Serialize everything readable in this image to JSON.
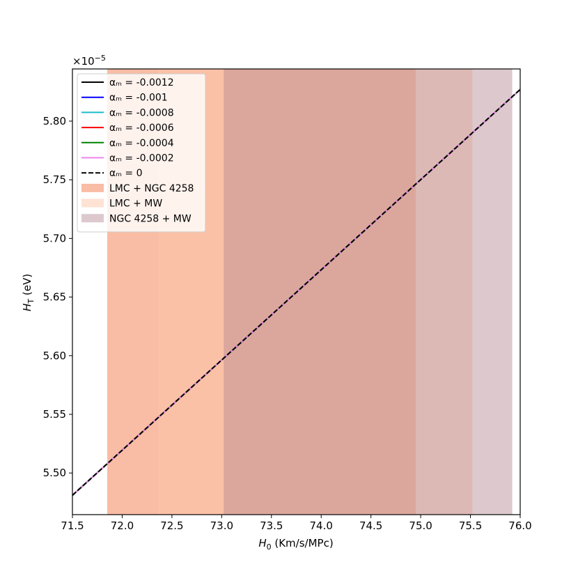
{
  "chart_data": {
    "type": "line",
    "xlabel_symbol": "H",
    "xlabel_sub": "0",
    "xlabel_unit": " (Km/s/MPc)",
    "ylabel_symbol": "H",
    "ylabel_sub": "T",
    "ylabel_unit": " (eV)",
    "offset_text_base": "×10",
    "offset_text_exp": "−5",
    "xlim": [
      71.5,
      76.0
    ],
    "ylim": [
      5.4645,
      5.8445
    ],
    "xticks": [
      71.5,
      72.0,
      72.5,
      73.0,
      73.5,
      74.0,
      74.5,
      75.0,
      75.5,
      76.0
    ],
    "xtick_labels": [
      "71.5",
      "72.0",
      "72.5",
      "73.0",
      "73.5",
      "74.0",
      "74.5",
      "75.0",
      "75.5",
      "76.0"
    ],
    "yticks": [
      5.5,
      5.55,
      5.6,
      5.65,
      5.7,
      5.75,
      5.8
    ],
    "ytick_labels": [
      "5.50",
      "5.55",
      "5.60",
      "5.65",
      "5.70",
      "5.75",
      "5.80"
    ],
    "legend_position": "upper-left",
    "series": [
      {
        "name": "αₘ = -0.0012",
        "color": "#000000",
        "dash": "solid",
        "x": [
          71.5,
          76.0
        ],
        "y": [
          5.481,
          5.827
        ]
      },
      {
        "name": "αₘ = -0.001",
        "color": "#0000ff",
        "dash": "solid",
        "x": [
          71.5,
          76.0
        ],
        "y": [
          5.481,
          5.827
        ]
      },
      {
        "name": "αₘ = -0.0008",
        "color": "#17becf",
        "dash": "solid",
        "x": [
          71.5,
          76.0
        ],
        "y": [
          5.481,
          5.827
        ]
      },
      {
        "name": "αₘ = -0.0006",
        "color": "#ff0000",
        "dash": "solid",
        "x": [
          71.5,
          76.0
        ],
        "y": [
          5.481,
          5.827
        ]
      },
      {
        "name": "αₘ = -0.0004",
        "color": "#008000",
        "dash": "solid",
        "x": [
          71.5,
          76.0
        ],
        "y": [
          5.481,
          5.827
        ]
      },
      {
        "name": "αₘ = -0.0002",
        "color": "#ee82ee",
        "dash": "solid",
        "x": [
          71.5,
          76.0
        ],
        "y": [
          5.481,
          5.827
        ]
      },
      {
        "name": "αₘ = 0",
        "color": "#000000",
        "dash": "dashed",
        "x": [
          71.5,
          76.0
        ],
        "y": [
          5.481,
          5.827
        ]
      }
    ],
    "bands": [
      {
        "name": "LMC + NGC 4258",
        "x0": 71.85,
        "x1": 74.95,
        "color": "#f47a4a",
        "opacity": 0.5
      },
      {
        "name": "LMC + MW",
        "x0": 72.36,
        "x1": 75.52,
        "color": "#fdc6a8",
        "opacity": 0.5
      },
      {
        "name": "NGC 4258 + MW",
        "x0": 73.02,
        "x1": 75.92,
        "color": "#b48890",
        "opacity": 0.45
      }
    ]
  }
}
